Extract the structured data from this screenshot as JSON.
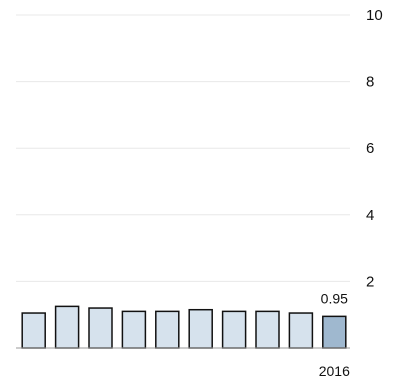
{
  "chart_data": {
    "type": "bar",
    "categories": [
      "",
      "",
      "",
      "",
      "",
      "",
      "",
      "",
      "",
      "2016"
    ],
    "values": [
      1.05,
      1.25,
      1.2,
      1.1,
      1.1,
      1.15,
      1.1,
      1.1,
      1.05,
      0.95
    ],
    "data_labels": [
      "",
      "",
      "",
      "",
      "",
      "",
      "",
      "",
      "",
      "0.95"
    ],
    "y_ticks": [
      2,
      4,
      6,
      8,
      10
    ],
    "ylim": [
      0,
      10
    ],
    "grid": true,
    "colors": {
      "bar": "#d6e2ed",
      "highlight": "#9fb8cf",
      "stroke": "#111111",
      "grid": "#e8e8e8"
    },
    "highlight_index": 9
  }
}
